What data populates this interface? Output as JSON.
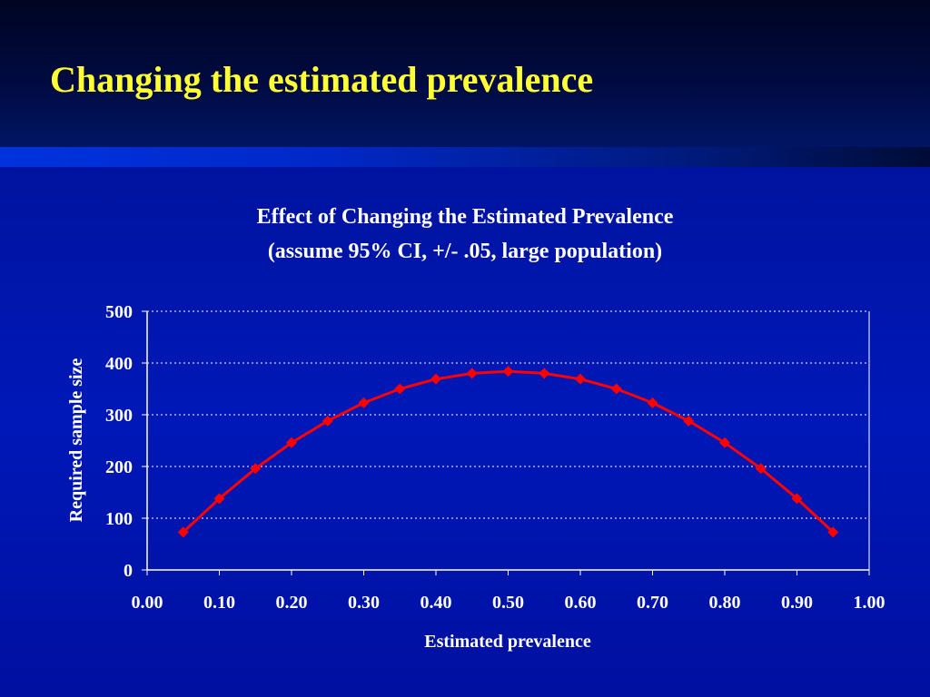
{
  "slide": {
    "title": "Changing the estimated prevalence",
    "title_color": "#ffff33",
    "background_color": "#0014a8"
  },
  "chart_data": {
    "type": "line",
    "title": "Effect of Changing the Estimated Prevalence",
    "subtitle": "(assume 95% CI, +/- .05, large population)",
    "xlabel": "Estimated prevalence",
    "ylabel": "Required sample size",
    "xlim": [
      0,
      1
    ],
    "ylim": [
      0,
      500
    ],
    "x_ticks": [
      "0.00",
      "0.10",
      "0.20",
      "0.30",
      "0.40",
      "0.50",
      "0.60",
      "0.70",
      "0.80",
      "0.90",
      "1.00"
    ],
    "y_ticks": [
      "0",
      "100",
      "200",
      "300",
      "400",
      "500"
    ],
    "grid": "horizontal dotted",
    "line_color": "#ff0000",
    "marker": "diamond",
    "series": [
      {
        "x": [
          0.05,
          0.1,
          0.15,
          0.2,
          0.25,
          0.3,
          0.35,
          0.4,
          0.45,
          0.5,
          0.55,
          0.6,
          0.65,
          0.7,
          0.75,
          0.8,
          0.85,
          0.9,
          0.95
        ],
        "values": [
          73,
          138,
          196,
          246,
          288,
          323,
          350,
          369,
          380,
          384,
          380,
          369,
          350,
          323,
          288,
          246,
          196,
          138,
          73
        ]
      }
    ]
  }
}
